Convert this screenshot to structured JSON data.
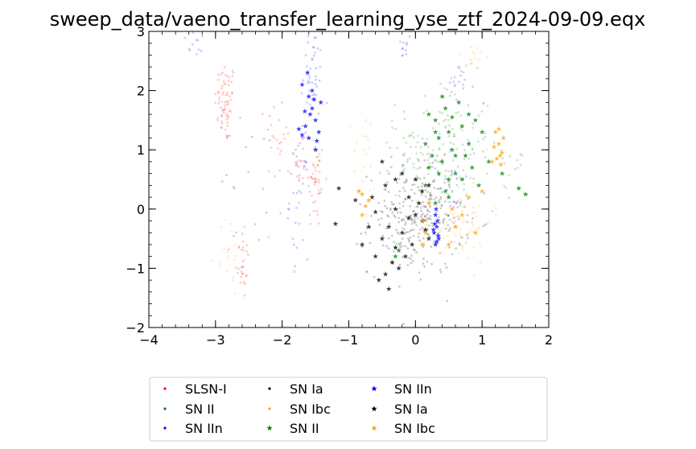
{
  "chart_data": {
    "type": "scatter",
    "title": "sweep_data/vaeno_transfer_learning_yse_ztf_2024-09-09.eqx",
    "xlabel": "",
    "ylabel": "",
    "xlim": [
      -4,
      2
    ],
    "ylim": [
      -2,
      3
    ],
    "xticks": [
      -4,
      -3,
      -2,
      -1,
      0,
      1,
      2
    ],
    "yticks": [
      -2,
      -1,
      0,
      1,
      2,
      3
    ],
    "xtick_labels": [
      "−4",
      "−3",
      "−2",
      "−1",
      "0",
      "1",
      "2"
    ],
    "ytick_labels": [
      "−2",
      "−1",
      "0",
      "1",
      "2",
      "3"
    ],
    "grid": false,
    "legend_placement": "below-center",
    "legend_columns": 4,
    "series": [
      {
        "name": "SLSN-I",
        "marker": "dot",
        "color": "#ff0000",
        "alpha": 0.2,
        "clusters": [
          [
            -2.85,
            1.8,
            0.08,
            0.35,
            70
          ],
          [
            -2.6,
            -0.85,
            0.05,
            0.35,
            30
          ],
          [
            -1.5,
            0.45,
            0.07,
            0.4,
            45
          ],
          [
            -1.72,
            0.85,
            0.05,
            0.25,
            20
          ],
          [
            -2.05,
            1.2,
            0.1,
            0.4,
            25
          ]
        ]
      },
      {
        "name": "SN II",
        "marker": "dot",
        "color": "#008000",
        "alpha": 0.2,
        "clusters": [
          [
            0.45,
            1.1,
            0.35,
            0.55,
            130
          ],
          [
            0.1,
            0.8,
            0.3,
            0.4,
            40
          ],
          [
            1.4,
            0.5,
            0.15,
            0.3,
            15
          ]
        ]
      },
      {
        "name": "SN IIn",
        "marker": "dot",
        "color": "#0000ff",
        "alpha": 0.2,
        "clusters": [
          [
            -1.55,
            2.3,
            0.08,
            0.45,
            45
          ],
          [
            -1.75,
            0.2,
            0.07,
            0.5,
            35
          ],
          [
            -3.3,
            2.8,
            0.1,
            0.12,
            12
          ],
          [
            -0.15,
            2.75,
            0.08,
            0.15,
            12
          ],
          [
            0.65,
            2.1,
            0.12,
            0.15,
            15
          ],
          [
            0.55,
            0.2,
            0.25,
            0.35,
            35
          ],
          [
            -2.45,
            0.6,
            0.25,
            0.6,
            18
          ]
        ]
      },
      {
        "name": "SN Ia",
        "marker": "dot",
        "color": "#000000",
        "alpha": 0.2,
        "clusters": [
          [
            0.0,
            -0.2,
            0.35,
            0.45,
            280
          ]
        ]
      },
      {
        "name": "SN Ibc",
        "marker": "dot",
        "color": "#ffa500",
        "alpha": 0.2,
        "clusters": [
          [
            0.65,
            -0.2,
            0.25,
            0.35,
            90
          ],
          [
            -0.75,
            0.6,
            0.1,
            0.6,
            25
          ],
          [
            0.85,
            2.6,
            0.1,
            0.12,
            15
          ],
          [
            -2.8,
            -0.8,
            0.1,
            0.35,
            20
          ]
        ]
      },
      {
        "name": "SN II",
        "marker": "star",
        "color": "#008000",
        "alpha": 0.75,
        "points": [
          [
            0.2,
            1.6
          ],
          [
            0.3,
            1.5
          ],
          [
            0.35,
            1.2
          ],
          [
            0.45,
            1.7
          ],
          [
            0.5,
            1.3
          ],
          [
            0.55,
            1.0
          ],
          [
            0.4,
            0.8
          ],
          [
            0.6,
            0.6
          ],
          [
            0.7,
            1.4
          ],
          [
            0.8,
            1.1
          ],
          [
            0.9,
            1.5
          ],
          [
            0.25,
            0.9
          ],
          [
            0.35,
            0.6
          ],
          [
            0.5,
            0.5
          ],
          [
            0.15,
            0.4
          ],
          [
            0.65,
            1.8
          ],
          [
            0.75,
            0.9
          ],
          [
            0.85,
            0.7
          ],
          [
            1.0,
            1.3
          ],
          [
            0.95,
            0.4
          ],
          [
            1.1,
            0.8
          ],
          [
            1.3,
            0.6
          ],
          [
            1.55,
            0.35
          ],
          [
            1.65,
            0.25
          ],
          [
            0.45,
            0.3
          ],
          [
            -0.25,
            -0.7
          ],
          [
            -0.3,
            -0.8
          ],
          [
            0.3,
            0.1
          ],
          [
            0.55,
            1.55
          ],
          [
            0.4,
            1.9
          ],
          [
            0.3,
            1.3
          ],
          [
            0.6,
            0.9
          ],
          [
            0.7,
            0.5
          ],
          [
            0.2,
            0.7
          ],
          [
            0.15,
            1.1
          ],
          [
            0.8,
            1.6
          ],
          [
            0.5,
            0.2
          ]
        ]
      },
      {
        "name": "SN IIn",
        "marker": "star",
        "color": "#0000ff",
        "alpha": 0.75,
        "points": [
          [
            -1.7,
            2.1
          ],
          [
            -1.6,
            1.9
          ],
          [
            -1.55,
            1.7
          ],
          [
            -1.5,
            1.5
          ],
          [
            -1.65,
            1.4
          ],
          [
            -1.45,
            1.3
          ],
          [
            -1.7,
            1.25
          ],
          [
            -1.6,
            1.2
          ],
          [
            -1.5,
            1.0
          ],
          [
            -1.55,
            2.0
          ],
          [
            -1.62,
            2.3
          ],
          [
            -1.58,
            1.6
          ],
          [
            -1.42,
            1.8
          ],
          [
            -1.75,
            1.35
          ],
          [
            -1.48,
            1.15
          ],
          [
            -1.66,
            1.65
          ],
          [
            -1.52,
            1.85
          ],
          [
            0.3,
            -0.1
          ],
          [
            0.32,
            -0.3
          ],
          [
            0.28,
            -0.4
          ],
          [
            0.35,
            -0.5
          ],
          [
            0.3,
            -0.6
          ],
          [
            0.33,
            -0.2
          ],
          [
            0.27,
            -0.35
          ],
          [
            0.31,
            0.0
          ],
          [
            0.34,
            -0.45
          ],
          [
            0.29,
            -0.25
          ],
          [
            0.32,
            -0.55
          ]
        ]
      },
      {
        "name": "SN Ia",
        "marker": "star",
        "color": "#000000",
        "alpha": 0.75,
        "points": [
          [
            -0.6,
            -0.8
          ],
          [
            -0.5,
            -0.5
          ],
          [
            -0.4,
            -0.3
          ],
          [
            -0.3,
            0.0
          ],
          [
            -0.2,
            -0.4
          ],
          [
            -0.1,
            0.2
          ],
          [
            0.0,
            -0.1
          ],
          [
            0.1,
            0.3
          ],
          [
            0.2,
            -0.5
          ],
          [
            -0.35,
            -0.9
          ],
          [
            -0.25,
            -1.0
          ],
          [
            -0.45,
            -1.1
          ],
          [
            -0.55,
            -1.2
          ],
          [
            -0.15,
            -0.8
          ],
          [
            -0.05,
            -0.6
          ],
          [
            0.05,
            0.1
          ],
          [
            -0.7,
            -0.3
          ],
          [
            -0.8,
            -0.6
          ],
          [
            -0.65,
            0.2
          ],
          [
            -0.3,
            0.5
          ],
          [
            -0.5,
            0.8
          ],
          [
            -0.2,
            0.6
          ],
          [
            0.0,
            0.5
          ],
          [
            0.1,
            -0.2
          ],
          [
            -1.2,
            -0.25
          ],
          [
            -1.15,
            0.35
          ],
          [
            -0.9,
            0.15
          ],
          [
            -0.4,
            -1.35
          ],
          [
            -0.3,
            -0.65
          ],
          [
            0.15,
            -0.35
          ],
          [
            -0.1,
            -0.15
          ],
          [
            -0.6,
            -0.05
          ],
          [
            0.2,
            0.4
          ],
          [
            -0.45,
            0.4
          ]
        ]
      },
      {
        "name": "SN Ibc",
        "marker": "star",
        "color": "#ffa500",
        "alpha": 0.75,
        "points": [
          [
            1.2,
            1.3
          ],
          [
            1.25,
            1.1
          ],
          [
            1.3,
            0.95
          ],
          [
            1.22,
            0.85
          ],
          [
            1.28,
            0.75
          ],
          [
            1.18,
            1.05
          ],
          [
            1.32,
            1.2
          ],
          [
            1.27,
            0.9
          ],
          [
            1.15,
            0.8
          ],
          [
            1.25,
            1.35
          ],
          [
            -0.8,
            0.25
          ],
          [
            -0.75,
            0.05
          ],
          [
            -0.8,
            -0.1
          ],
          [
            -0.7,
            0.15
          ],
          [
            -0.85,
            0.3
          ],
          [
            0.1,
            -0.2
          ],
          [
            0.15,
            -0.4
          ],
          [
            0.1,
            -0.6
          ],
          [
            0.2,
            0.1
          ],
          [
            0.6,
            -0.3
          ],
          [
            0.7,
            -0.1
          ],
          [
            0.8,
            0.2
          ],
          [
            0.5,
            -0.6
          ],
          [
            1.0,
            0.3
          ],
          [
            0.9,
            -0.4
          ],
          [
            0.55,
            0.0
          ]
        ]
      }
    ]
  }
}
